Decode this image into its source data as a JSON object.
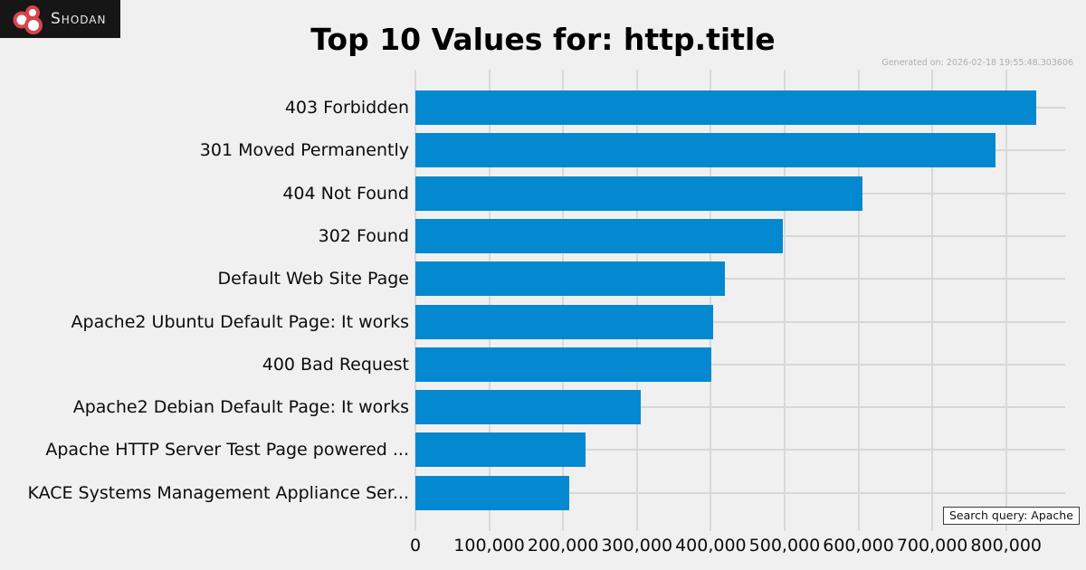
{
  "logo": {
    "brand": "Shodan"
  },
  "header": {
    "title": "Top 10 Values for: http.title",
    "generated": "Generated on: 2026-02-18 19:55:48.303606"
  },
  "footer": {
    "search_query": "Search query: Apache"
  },
  "colors": {
    "background": "#f0f0f0",
    "bar": "#0489d0",
    "grid": "#d9d9d9",
    "logo_background": "#161616",
    "logo_red": "#d8444c",
    "title_text": "#000000",
    "generated_text": "#aeaeae"
  },
  "chart_data": {
    "type": "bar",
    "orientation": "horizontal",
    "title": "Top 10 Values for: http.title",
    "categories": [
      "403 Forbidden",
      "301 Moved Permanently",
      "404 Not Found",
      "302 Found",
      "Default Web Site Page",
      "Apache2 Ubuntu Default Page: It works",
      "400 Bad Request",
      "Apache2 Debian Default Page: It works",
      "Apache HTTP Server Test Page powered ...",
      "KACE Systems Management Appliance Ser..."
    ],
    "values": [
      841000,
      786000,
      606000,
      497000,
      419000,
      403000,
      401000,
      305000,
      230000,
      208000
    ],
    "xlabel": "",
    "ylabel": "",
    "xlim": [
      0,
      880000
    ],
    "xticks": [
      0,
      100000,
      200000,
      300000,
      400000,
      500000,
      600000,
      700000,
      800000
    ],
    "xtick_labels": [
      "0",
      "100,000",
      "200,000",
      "300,000",
      "400,000",
      "500,000",
      "600,000",
      "700,000",
      "800,000"
    ],
    "grid": true,
    "legend": false
  }
}
